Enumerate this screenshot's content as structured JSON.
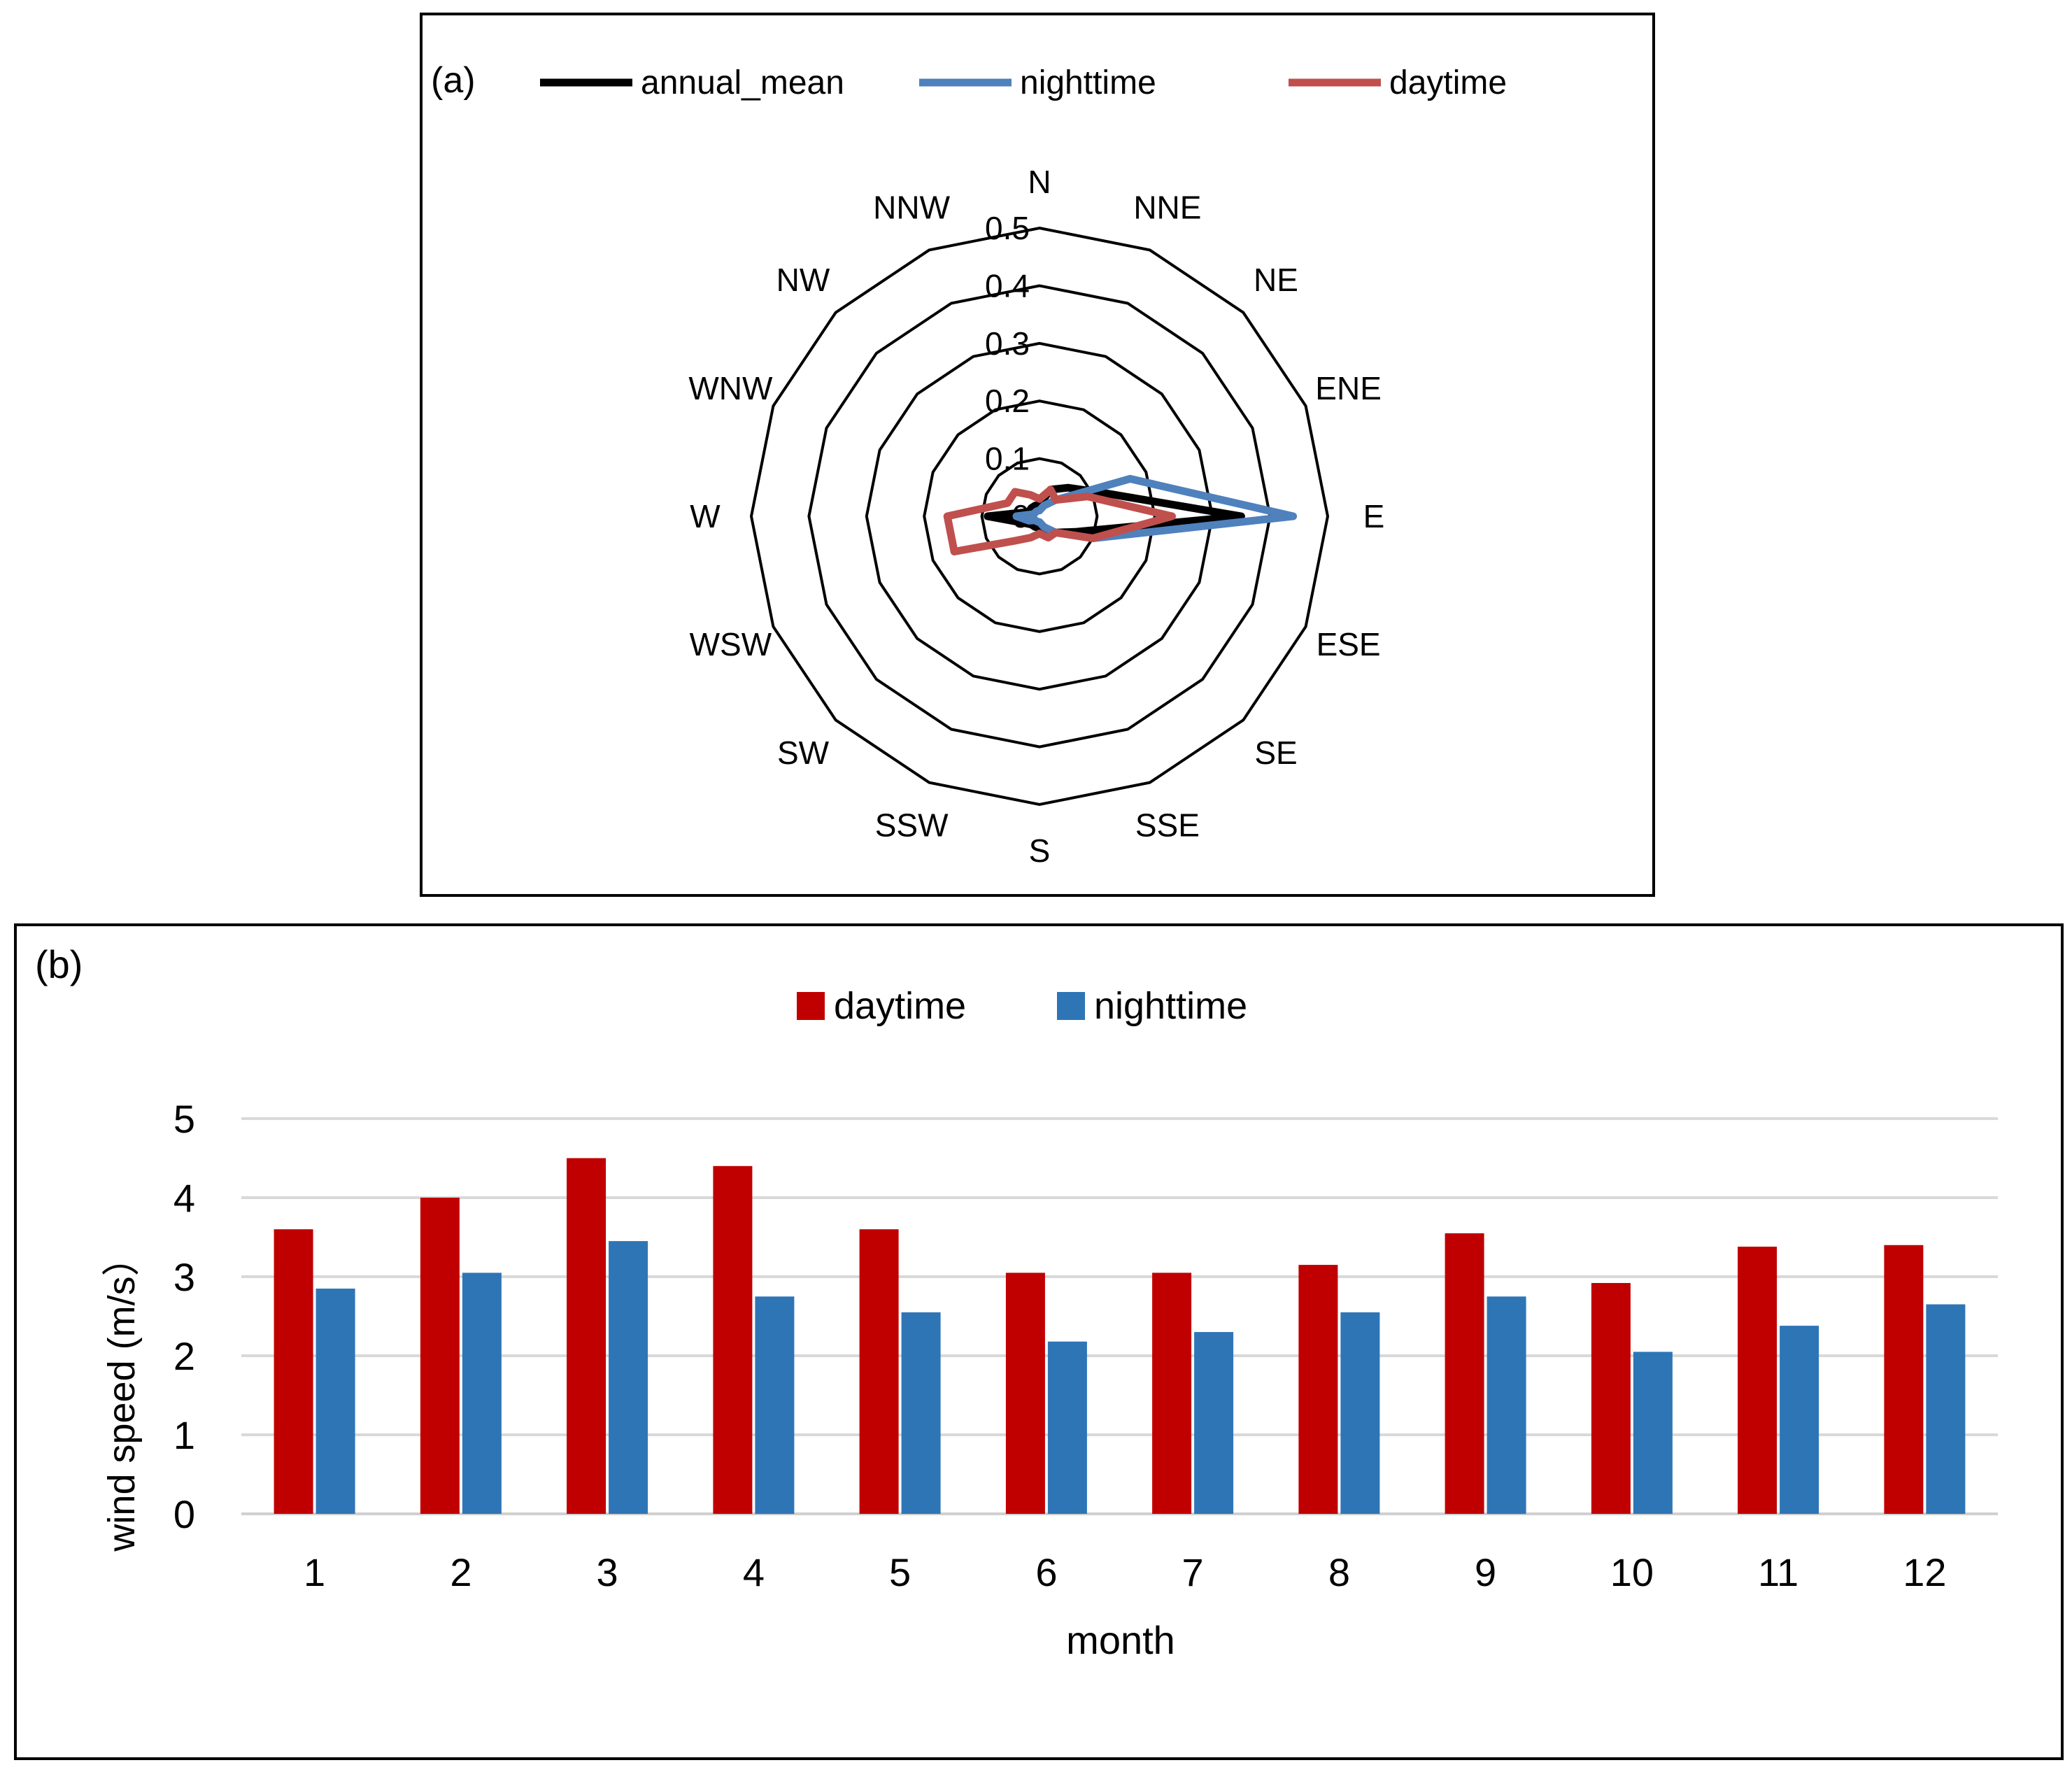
{
  "chart_data": [
    {
      "type": "radar",
      "panel_label": "(a)",
      "title": "",
      "categories": [
        "N",
        "NNE",
        "NE",
        "ENE",
        "E",
        "ESE",
        "SE",
        "SSE",
        "S",
        "SSW",
        "SW",
        "WSW",
        "W",
        "WNW",
        "NW",
        "NNW"
      ],
      "radial_ticks": [
        "0",
        "0.1",
        "0.2",
        "0.3",
        "0.4",
        "0.5"
      ],
      "radial_range": [
        0,
        0.5
      ],
      "legend_position": "top",
      "series": [
        {
          "name": "annual_mean",
          "color": "#000000",
          "values": [
            0.02,
            0.05,
            0.07,
            0.11,
            0.35,
            0.07,
            0.04,
            0.03,
            0.02,
            0.02,
            0.02,
            0.03,
            0.09,
            0.02,
            0.02,
            0.02
          ]
        },
        {
          "name": "nighttime",
          "color": "#4f81bd",
          "values": [
            0.01,
            0.02,
            0.04,
            0.17,
            0.44,
            0.1,
            0.04,
            0.02,
            0.01,
            0.01,
            0.01,
            0.02,
            0.04,
            0.01,
            0.01,
            0.01
          ]
        },
        {
          "name": "daytime",
          "color": "#c0504d",
          "values": [
            0.03,
            0.05,
            0.04,
            0.09,
            0.23,
            0.1,
            0.04,
            0.04,
            0.03,
            0.04,
            0.06,
            0.16,
            0.16,
            0.06,
            0.06,
            0.04
          ]
        }
      ]
    },
    {
      "type": "bar",
      "panel_label": "(b)",
      "title": "",
      "xlabel": "month",
      "ylabel": "wind speed (m/s）",
      "ylim": [
        0,
        5
      ],
      "yticks": [
        "0",
        "1",
        "2",
        "3",
        "4",
        "5"
      ],
      "grid": true,
      "legend_position": "top",
      "categories": [
        "1",
        "2",
        "3",
        "4",
        "5",
        "6",
        "7",
        "8",
        "9",
        "10",
        "11",
        "12"
      ],
      "series": [
        {
          "name": "daytime",
          "color": "#c00000",
          "values": [
            3.6,
            4.0,
            4.5,
            4.4,
            3.6,
            3.05,
            3.05,
            3.15,
            3.55,
            2.92,
            3.38,
            3.4
          ]
        },
        {
          "name": "nighttime",
          "color": "#2e75b6",
          "values": [
            2.85,
            3.05,
            3.45,
            2.75,
            2.55,
            2.18,
            2.3,
            2.55,
            2.75,
            2.05,
            2.38,
            2.65
          ]
        }
      ]
    }
  ]
}
